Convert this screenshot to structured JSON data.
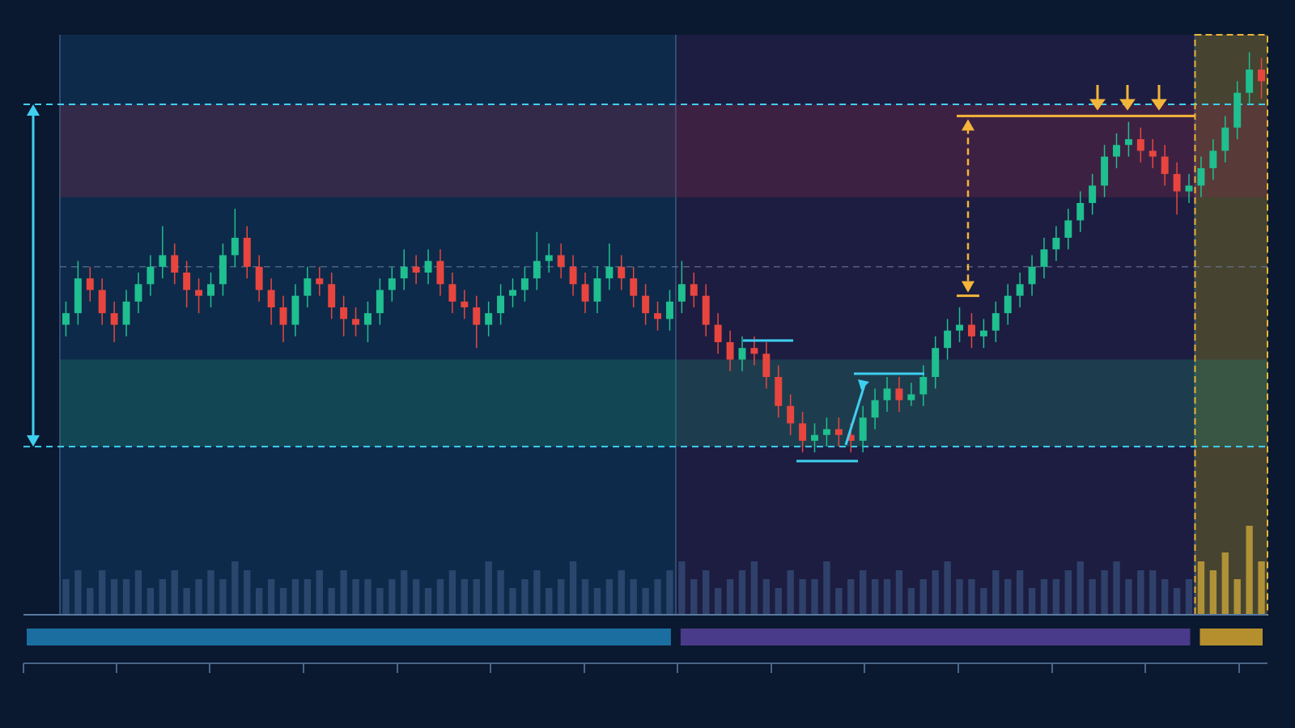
{
  "chart_data": {
    "type": "candlestick",
    "up_color": "#1fbf8f",
    "down_color": "#e8453f",
    "ylim": [
      0,
      100
    ],
    "volume_lim": [
      0,
      10
    ],
    "open": [
      50,
      52,
      58,
      56,
      52,
      50,
      54,
      57,
      60,
      62,
      59,
      56,
      55,
      57,
      62,
      65,
      60,
      56,
      53,
      50,
      55,
      58,
      57,
      53,
      51,
      50,
      52,
      56,
      58,
      60,
      59,
      61,
      57,
      54,
      53,
      50,
      52,
      55,
      56,
      58,
      61,
      62,
      60,
      57,
      54,
      58,
      60,
      58,
      55,
      52,
      51,
      54,
      57,
      55,
      50,
      47,
      44,
      46,
      45,
      41,
      36,
      33,
      30,
      31,
      32,
      31,
      30,
      34,
      37,
      39,
      37,
      38,
      41,
      46,
      49,
      50,
      48,
      49,
      52,
      55,
      57,
      60,
      63,
      65,
      68,
      71,
      74,
      79,
      81,
      82,
      80,
      79,
      76,
      73,
      74,
      77,
      80,
      84,
      90,
      94
    ],
    "high": [
      54,
      61,
      60,
      58,
      54,
      56,
      59,
      62,
      67,
      64,
      61,
      58,
      59,
      64,
      70,
      67,
      62,
      58,
      55,
      57,
      60,
      60,
      59,
      55,
      53,
      54,
      58,
      60,
      63,
      62,
      63,
      63,
      59,
      56,
      55,
      54,
      57,
      58,
      60,
      66,
      64,
      64,
      62,
      59,
      60,
      64,
      62,
      60,
      57,
      54,
      56,
      61,
      59,
      57,
      52,
      49,
      48,
      48,
      47,
      43,
      38,
      35,
      33,
      34,
      34,
      33,
      36,
      39,
      41,
      41,
      40,
      43,
      48,
      51,
      53,
      52,
      51,
      54,
      57,
      59,
      62,
      65,
      67,
      70,
      73,
      76,
      81,
      83,
      85,
      84,
      82,
      81,
      78,
      76,
      79,
      82,
      86,
      92,
      97,
      96
    ],
    "low": [
      48,
      50,
      54,
      50,
      47,
      48,
      52,
      55,
      58,
      57,
      53,
      52,
      53,
      55,
      60,
      58,
      54,
      50,
      47,
      48,
      53,
      55,
      51,
      48,
      48,
      47,
      50,
      54,
      56,
      57,
      57,
      55,
      52,
      51,
      46,
      48,
      50,
      53,
      54,
      56,
      59,
      58,
      55,
      52,
      52,
      56,
      56,
      53,
      50,
      49,
      49,
      52,
      53,
      48,
      45,
      42,
      42,
      43,
      39,
      34,
      31,
      28,
      28,
      29,
      29,
      28,
      28,
      32,
      35,
      35,
      36,
      36,
      39,
      44,
      47,
      46,
      46,
      47,
      50,
      53,
      55,
      58,
      61,
      63,
      66,
      69,
      72,
      77,
      79,
      78,
      77,
      74,
      69,
      71,
      72,
      75,
      78,
      82,
      88,
      89
    ],
    "close": [
      52,
      58,
      56,
      52,
      50,
      54,
      57,
      60,
      62,
      59,
      56,
      55,
      57,
      62,
      65,
      60,
      56,
      53,
      50,
      55,
      58,
      57,
      53,
      51,
      50,
      52,
      56,
      58,
      60,
      59,
      61,
      57,
      54,
      53,
      50,
      52,
      55,
      56,
      58,
      61,
      62,
      60,
      57,
      54,
      58,
      60,
      58,
      55,
      52,
      51,
      54,
      57,
      55,
      50,
      47,
      44,
      46,
      45,
      41,
      36,
      33,
      30,
      31,
      32,
      31,
      30,
      34,
      37,
      39,
      37,
      38,
      41,
      46,
      49,
      50,
      48,
      49,
      52,
      55,
      57,
      60,
      63,
      65,
      68,
      71,
      74,
      79,
      81,
      82,
      80,
      79,
      76,
      73,
      74,
      77,
      80,
      84,
      90,
      94,
      92
    ],
    "volumes": [
      4,
      5,
      3,
      5,
      4,
      4,
      5,
      3,
      4,
      5,
      3,
      4,
      5,
      4,
      6,
      5,
      3,
      4,
      3,
      4,
      4,
      5,
      3,
      5,
      4,
      4,
      3,
      4,
      5,
      4,
      3,
      4,
      5,
      4,
      4,
      6,
      5,
      3,
      4,
      5,
      3,
      4,
      6,
      4,
      3,
      4,
      5,
      4,
      3,
      4,
      5,
      6,
      4,
      5,
      3,
      4,
      5,
      6,
      4,
      3,
      5,
      4,
      4,
      6,
      3,
      4,
      5,
      4,
      4,
      5,
      3,
      4,
      5,
      6,
      4,
      4,
      3,
      5,
      4,
      5,
      3,
      4,
      4,
      5,
      6,
      4,
      5,
      6,
      4,
      5,
      5,
      4,
      3,
      4,
      6,
      5,
      7,
      4,
      10,
      6
    ],
    "regions": [
      {
        "start": 0,
        "end": 50,
        "color": "#0e2b4c",
        "bar_color": "#1a6fa0"
      },
      {
        "start": 51,
        "end": 93,
        "color": "#1d1e42",
        "bar_color": "#4a3a8a"
      },
      {
        "start": 94,
        "end": 99,
        "color": "#4a4631",
        "bar_color": "#b58f2e"
      }
    ],
    "zones": [
      {
        "from": 72,
        "to": 88,
        "color": "#7a2c48"
      },
      {
        "from": 29,
        "to": 44,
        "color": "#1f7a68"
      }
    ],
    "reference_lines": [
      88,
      60,
      29
    ],
    "resistance": 86,
    "measure": [
      86,
      55
    ]
  }
}
